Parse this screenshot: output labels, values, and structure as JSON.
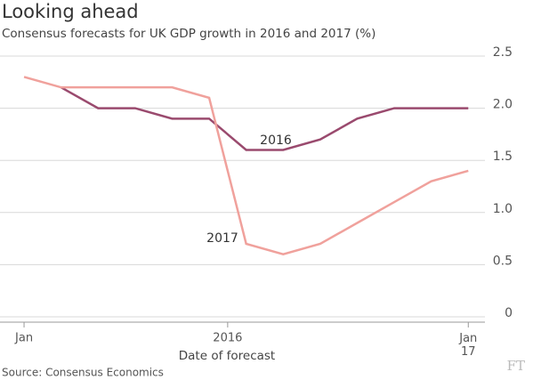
{
  "chart_data": {
    "type": "line",
    "title": "Looking ahead",
    "subtitle": "Consensus forecasts for UK GDP growth in 2016 and 2017 (%)",
    "x_label": "Date of forecast",
    "source": "Source: Consensus Economics",
    "logo": "FT",
    "x": [
      0,
      1,
      2,
      3,
      4,
      5,
      6,
      7,
      8,
      9,
      10,
      11,
      12
    ],
    "xlim": [
      -0.65,
      12.45
    ],
    "xticks": [
      {
        "value": 0,
        "label": "Jan"
      },
      {
        "value": 5.5,
        "label": "2016"
      },
      {
        "value": 12,
        "label": "Jan 17"
      }
    ],
    "ylim": [
      0,
      2.5
    ],
    "yticks": [
      {
        "value": 0,
        "label": "0"
      },
      {
        "value": 0.5,
        "label": "0.5"
      },
      {
        "value": 1,
        "label": "1.0"
      },
      {
        "value": 1.5,
        "label": "1.5"
      },
      {
        "value": 2,
        "label": "2.0"
      },
      {
        "value": 2.5,
        "label": "2.5"
      }
    ],
    "grid": true,
    "series": [
      {
        "name": "2016",
        "color": "#9a4a6e",
        "values": [
          null,
          2.2,
          2.0,
          2.0,
          1.9,
          1.9,
          1.6,
          1.6,
          1.7,
          1.9,
          2.0,
          2.0,
          2.0
        ]
      },
      {
        "name": "2017",
        "color": "#f0a19c",
        "values": [
          2.3,
          2.2,
          2.2,
          2.2,
          2.2,
          2.1,
          0.7,
          0.6,
          0.7,
          0.9,
          1.1,
          1.3,
          1.4
        ]
      }
    ]
  }
}
